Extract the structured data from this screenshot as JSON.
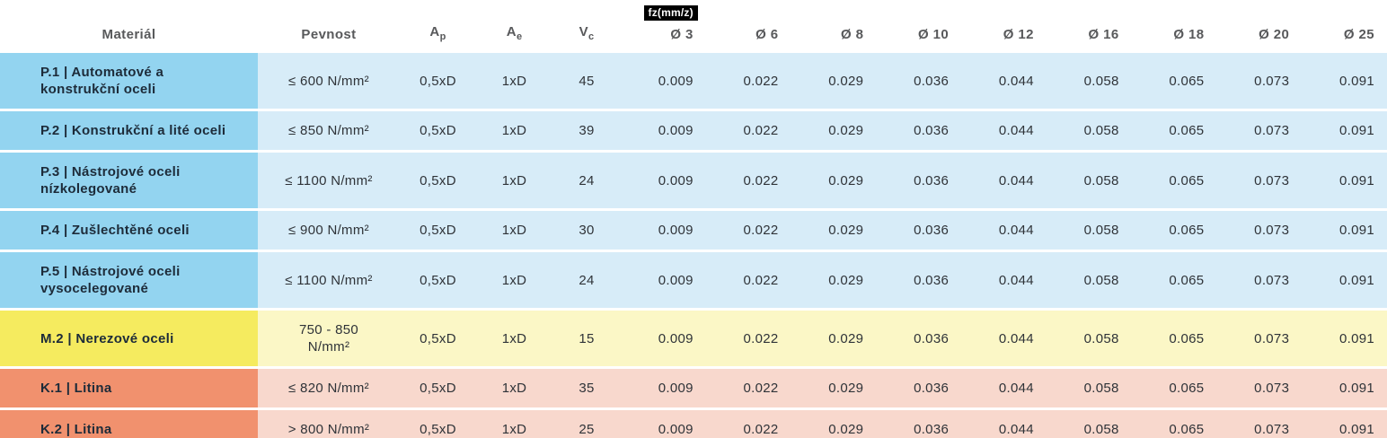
{
  "colors": {
    "steel_strong": "#93D4F0",
    "steel_light": "#D7ECF8",
    "stainless_strong": "#F5EB5F",
    "stainless_light": "#FBF7C6",
    "cast_iron_strong": "#F1916E",
    "cast_iron_light": "#F8D8CD",
    "badge_bg": "#000000",
    "badge_text": "#FFFFFF",
    "header_text": "#58595B",
    "material_text": "#1D2B39",
    "value_text": "#2F3338"
  },
  "table": {
    "fz_unit_label": "fz(mm/z)",
    "headers": {
      "material": "Materiál",
      "pevnost": "Pevnost",
      "ap_base": "A",
      "ap_sub": "p",
      "ae_base": "A",
      "ae_sub": "e",
      "vc_base": "V",
      "vc_sub": "c",
      "diameters": [
        "Ø 3",
        "Ø 6",
        "Ø 8",
        "Ø 10",
        "Ø 12",
        "Ø 16",
        "Ø 18",
        "Ø 20",
        "Ø 25"
      ]
    },
    "rows": [
      {
        "theme": "steel",
        "material": "P.1 | Automatové a konstrukční oceli",
        "pevnost": "≤ 600 N/mm²",
        "ap": "0,5xD",
        "ae": "1xD",
        "vc": "45",
        "fz": [
          "0.009",
          "0.022",
          "0.029",
          "0.036",
          "0.044",
          "0.058",
          "0.065",
          "0.073",
          "0.091"
        ]
      },
      {
        "theme": "steel",
        "material": "P.2 | Konstrukční a lité oceli",
        "pevnost": "≤ 850 N/mm²",
        "ap": "0,5xD",
        "ae": "1xD",
        "vc": "39",
        "fz": [
          "0.009",
          "0.022",
          "0.029",
          "0.036",
          "0.044",
          "0.058",
          "0.065",
          "0.073",
          "0.091"
        ]
      },
      {
        "theme": "steel",
        "material": "P.3 | Nástrojové oceli nízkolegované",
        "pevnost": "≤ 1100 N/mm²",
        "ap": "0,5xD",
        "ae": "1xD",
        "vc": "24",
        "fz": [
          "0.009",
          "0.022",
          "0.029",
          "0.036",
          "0.044",
          "0.058",
          "0.065",
          "0.073",
          "0.091"
        ]
      },
      {
        "theme": "steel",
        "material": "P.4 | Zušlechtěné oceli",
        "pevnost": "≤ 900 N/mm²",
        "ap": "0,5xD",
        "ae": "1xD",
        "vc": "30",
        "fz": [
          "0.009",
          "0.022",
          "0.029",
          "0.036",
          "0.044",
          "0.058",
          "0.065",
          "0.073",
          "0.091"
        ]
      },
      {
        "theme": "steel",
        "material": "P.5 | Nástrojové oceli vysocelegované",
        "pevnost": "≤ 1100 N/mm²",
        "ap": "0,5xD",
        "ae": "1xD",
        "vc": "24",
        "fz": [
          "0.009",
          "0.022",
          "0.029",
          "0.036",
          "0.044",
          "0.058",
          "0.065",
          "0.073",
          "0.091"
        ]
      },
      {
        "theme": "stainless",
        "material": "M.2 | Nerezové oceli",
        "pevnost": "750 - 850 N/mm²",
        "ap": "0,5xD",
        "ae": "1xD",
        "vc": "15",
        "fz": [
          "0.009",
          "0.022",
          "0.029",
          "0.036",
          "0.044",
          "0.058",
          "0.065",
          "0.073",
          "0.091"
        ]
      },
      {
        "theme": "cast-iron",
        "material": "K.1 | Litina",
        "pevnost": "≤ 820 N/mm²",
        "ap": "0,5xD",
        "ae": "1xD",
        "vc": "35",
        "fz": [
          "0.009",
          "0.022",
          "0.029",
          "0.036",
          "0.044",
          "0.058",
          "0.065",
          "0.073",
          "0.091"
        ]
      },
      {
        "theme": "cast-iron",
        "material": "K.2 | Litina",
        "pevnost": "> 800 N/mm²",
        "ap": "0,5xD",
        "ae": "1xD",
        "vc": "25",
        "fz": [
          "0.009",
          "0.022",
          "0.029",
          "0.036",
          "0.044",
          "0.058",
          "0.065",
          "0.073",
          "0.091"
        ]
      }
    ]
  }
}
